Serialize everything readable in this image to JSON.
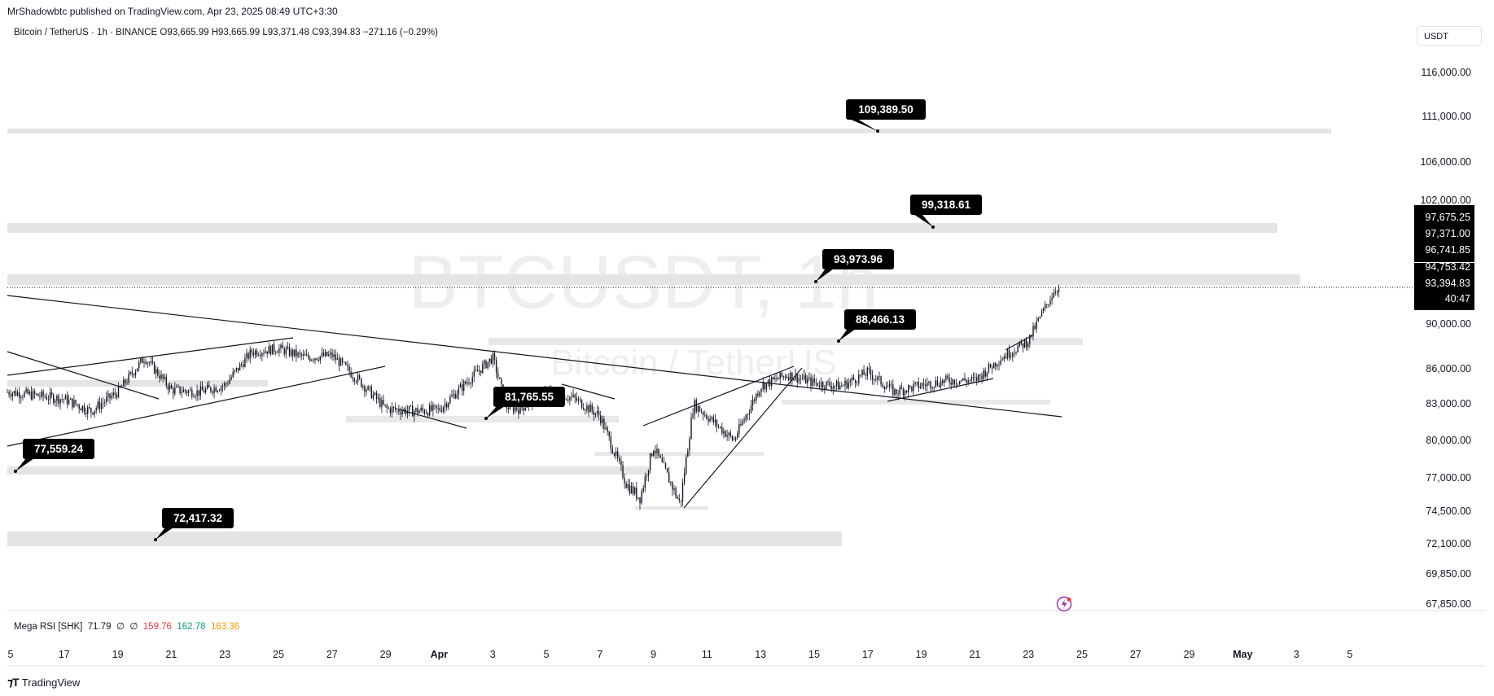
{
  "header": {
    "publisher": "MrShadowbtc published on TradingView.com, Apr 23, 2025 08:49 UTC+3:30",
    "symbol": "Bitcoin / TetherUS · 1h · BINANCE",
    "open": "O93,665.99",
    "high": "H93,665.99",
    "low": "L93,371.48",
    "close": "C93,394.83",
    "change": "−271.16 (−0.29%)",
    "currency": "USDT"
  },
  "watermark": {
    "symbol": "BTCUSDT, 1h",
    "name": "Bitcoin / TetherUS"
  },
  "indicator": {
    "name": "Mega RSI [SHK]",
    "v1": "71.79",
    "v2": "∅",
    "v3": "∅",
    "v4": "159.76",
    "v5": "162.78",
    "v6": "163.36"
  },
  "footer": {
    "brand": "TradingView"
  },
  "colors": {
    "zone": "#e4e4e4",
    "candle": "#131722",
    "label_bg": "#000000",
    "label_text": "#ffffff",
    "rsi_red": "#f23645",
    "rsi_green": "#089981",
    "rsi_orange": "#ff9800"
  },
  "chart_data": {
    "type": "candlestick",
    "price_axis_ticks": [
      "116,000.00",
      "111,000.00",
      "106,000.00",
      "102,000.00",
      "90,000.00",
      "86,000.00",
      "83,000.00",
      "80,000.00",
      "77,000.00",
      "74,500.00",
      "72,100.00",
      "69,850.00",
      "67,850.00"
    ],
    "price_axis_flags": [
      {
        "label": "97,675.25"
      },
      {
        "label": "97,371.00"
      },
      {
        "label": "96,741.85"
      },
      {
        "label": "94,753.42"
      },
      {
        "label": "93,394.83"
      },
      {
        "label": "40:47"
      }
    ],
    "time_axis_ticks": [
      "5",
      "17",
      "19",
      "21",
      "23",
      "25",
      "27",
      "29",
      "Apr",
      "3",
      "5",
      "7",
      "9",
      "11",
      "13",
      "15",
      "17",
      "19",
      "21",
      "23",
      "25",
      "27",
      "29",
      "May",
      "3",
      "5"
    ],
    "annotations": [
      {
        "label": "109,389.50",
        "price": 109389.5
      },
      {
        "label": "99,318.61",
        "price": 99318.61
      },
      {
        "label": "93,973.96",
        "price": 93973.96
      },
      {
        "label": "88,466.13",
        "price": 88466.13
      },
      {
        "label": "81,765.55",
        "price": 81765.55
      },
      {
        "label": "77,559.24",
        "price": 77559.24
      },
      {
        "label": "72,417.32",
        "price": 72417.32
      }
    ],
    "last_price": 93394.83,
    "approx_path": [
      {
        "date": "Mar 15",
        "price": 84000
      },
      {
        "date": "Mar 17",
        "price": 83400
      },
      {
        "date": "Mar 18",
        "price": 82400
      },
      {
        "date": "Mar 19",
        "price": 84000
      },
      {
        "date": "Mar 20",
        "price": 87000
      },
      {
        "date": "Mar 21",
        "price": 84200
      },
      {
        "date": "Mar 22",
        "price": 84000
      },
      {
        "date": "Mar 23",
        "price": 84600
      },
      {
        "date": "Mar 24",
        "price": 87500
      },
      {
        "date": "Mar 25",
        "price": 87800
      },
      {
        "date": "Mar 26",
        "price": 87000
      },
      {
        "date": "Mar 27",
        "price": 87200
      },
      {
        "date": "Mar 28",
        "price": 85000
      },
      {
        "date": "Mar 29",
        "price": 82600
      },
      {
        "date": "Mar 30",
        "price": 82400
      },
      {
        "date": "Mar 31",
        "price": 82500
      },
      {
        "date": "Apr 1",
        "price": 84800
      },
      {
        "date": "Apr 2",
        "price": 87000
      },
      {
        "date": "Apr 2.5",
        "price": 82800
      },
      {
        "date": "Apr 3",
        "price": 82600
      },
      {
        "date": "Apr 4",
        "price": 84000
      },
      {
        "date": "Apr 5",
        "price": 83500
      },
      {
        "date": "Apr 6",
        "price": 82000
      },
      {
        "date": "Apr 7",
        "price": 76500
      },
      {
        "date": "Apr 7.5",
        "price": 75500
      },
      {
        "date": "Apr 8",
        "price": 79500
      },
      {
        "date": "Apr 9",
        "price": 75000
      },
      {
        "date": "Apr 9.5",
        "price": 83000
      },
      {
        "date": "Apr 10",
        "price": 82000
      },
      {
        "date": "Apr 11",
        "price": 80000
      },
      {
        "date": "Apr 12",
        "price": 84500
      },
      {
        "date": "Apr 13",
        "price": 85500
      },
      {
        "date": "Apr 14",
        "price": 84800
      },
      {
        "date": "Apr 15",
        "price": 84500
      },
      {
        "date": "Apr 16",
        "price": 85700
      },
      {
        "date": "Apr 17",
        "price": 84000
      },
      {
        "date": "Apr 18",
        "price": 84600
      },
      {
        "date": "Apr 19",
        "price": 85000
      },
      {
        "date": "Apr 20",
        "price": 85000
      },
      {
        "date": "Apr 21",
        "price": 87000
      },
      {
        "date": "Apr 22",
        "price": 88500
      },
      {
        "date": "Apr 22.5",
        "price": 91000
      },
      {
        "date": "Apr 23",
        "price": 93394.83
      }
    ]
  }
}
